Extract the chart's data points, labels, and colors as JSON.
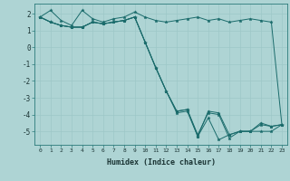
{
  "title": "",
  "xlabel": "Humidex (Indice chaleur)",
  "background_color": "#aed4d4",
  "grid_color": "#b8d8d8",
  "line_color": "#1a6b6b",
  "xlim": [
    -0.5,
    23.5
  ],
  "ylim": [
    -5.8,
    2.6
  ],
  "yticks": [
    -5,
    -4,
    -3,
    -2,
    -1,
    0,
    1,
    2
  ],
  "xticks": [
    0,
    1,
    2,
    3,
    4,
    5,
    6,
    7,
    8,
    9,
    10,
    11,
    12,
    13,
    14,
    15,
    16,
    17,
    18,
    19,
    20,
    21,
    22,
    23
  ],
  "lines": [
    [
      1.8,
      2.2,
      1.6,
      1.3,
      2.2,
      1.7,
      1.5,
      1.7,
      1.8,
      2.1,
      1.8,
      1.6,
      1.5,
      1.6,
      1.7,
      1.8,
      1.6,
      1.7,
      1.5,
      1.6,
      1.7,
      1.6,
      1.5,
      -4.6
    ],
    [
      1.8,
      1.5,
      1.3,
      1.2,
      1.2,
      1.5,
      1.4,
      1.5,
      1.6,
      1.8,
      0.3,
      -1.2,
      -2.6,
      -3.9,
      -3.8,
      -5.3,
      -4.2,
      -5.5,
      -5.2,
      -5.0,
      -5.0,
      -5.0,
      -5.0,
      -4.6
    ],
    [
      1.8,
      1.5,
      1.3,
      1.2,
      1.2,
      1.5,
      1.4,
      1.5,
      1.6,
      1.8,
      0.3,
      -1.2,
      -2.6,
      -3.8,
      -3.7,
      -5.3,
      -3.8,
      -3.9,
      -5.2,
      -5.0,
      -5.0,
      -4.5,
      -4.7,
      -4.6
    ],
    [
      1.8,
      1.5,
      1.3,
      1.2,
      1.2,
      1.5,
      1.4,
      1.5,
      1.6,
      1.8,
      0.3,
      -1.2,
      -2.6,
      -3.8,
      -3.7,
      -5.2,
      -3.9,
      -4.0,
      -5.4,
      -5.0,
      -5.0,
      -4.6,
      -4.7,
      -4.6
    ]
  ]
}
